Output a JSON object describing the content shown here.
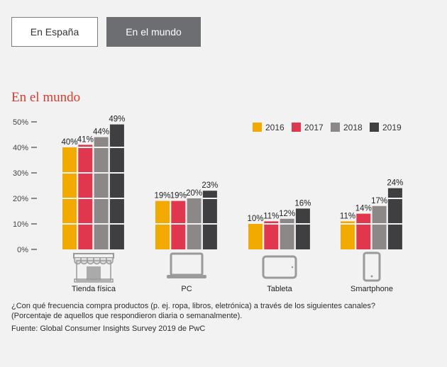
{
  "tabs": [
    {
      "label": "En España",
      "active": false
    },
    {
      "label": "En el mundo",
      "active": true
    }
  ],
  "section_title": "En el mundo",
  "chart_data": {
    "type": "bar",
    "categories": [
      "Tienda física",
      "PC",
      "Tableta",
      "Smartphone"
    ],
    "category_icons": [
      "store-icon",
      "laptop-icon",
      "tablet-icon",
      "smartphone-icon"
    ],
    "series": [
      {
        "name": "2016",
        "color": "#f2a900",
        "values": [
          40,
          19,
          10,
          11
        ]
      },
      {
        "name": "2017",
        "color": "#e0374f",
        "values": [
          41,
          19,
          11,
          14
        ]
      },
      {
        "name": "2018",
        "color": "#8c8888",
        "values": [
          44,
          20,
          12,
          17
        ]
      },
      {
        "name": "2019",
        "color": "#3f3e40",
        "values": [
          49,
          23,
          16,
          24
        ]
      }
    ],
    "yticks": [
      "0%",
      "10%",
      "20%",
      "30%",
      "40%",
      "50%"
    ],
    "ylim": [
      0,
      50
    ],
    "legend": "top-right",
    "data_labels": true
  },
  "footnote": {
    "question": "¿Con qué frecuencia compra productos (p. ej. ropa, libros, eletrónica) a través de los siguientes canales?",
    "note": "(Porcentaje de aquellos que respondieron diaria o semanalmente).",
    "source": "Fuente: Global Consumer Insights Survey 2019 de PwC"
  }
}
